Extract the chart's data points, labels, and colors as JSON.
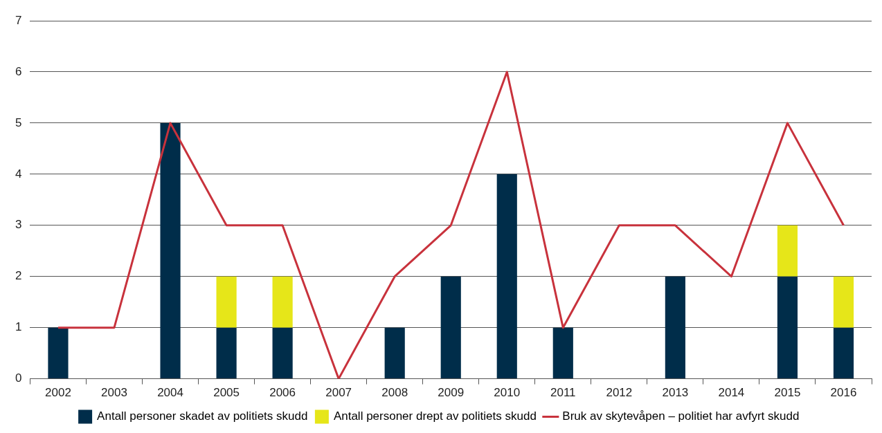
{
  "chart_data": {
    "type": "bar",
    "categories": [
      "2002",
      "2003",
      "2004",
      "2005",
      "2006",
      "2007",
      "2008",
      "2009",
      "2010",
      "2011",
      "2012",
      "2013",
      "2014",
      "2015",
      "2016"
    ],
    "stacked": true,
    "series": [
      {
        "name": "Antall personer skadet av politiets skudd",
        "color": "#002d4a",
        "values": [
          1,
          0,
          5,
          1,
          1,
          0,
          1,
          2,
          4,
          1,
          0,
          2,
          0,
          2,
          1
        ]
      },
      {
        "name": "Antall personer drept av politiets skudd",
        "color": "#e6e619",
        "values": [
          0,
          0,
          0,
          1,
          1,
          0,
          0,
          0,
          0,
          0,
          0,
          0,
          0,
          1,
          1
        ]
      },
      {
        "name": "Bruk av skytevåpen – politiet har avfyrt skudd",
        "type": "line",
        "color": "#c8323c",
        "values": [
          1,
          1,
          5,
          3,
          3,
          0,
          2,
          3,
          6,
          1,
          3,
          3,
          2,
          5,
          3
        ]
      }
    ],
    "ylim": [
      0,
      7
    ],
    "yticks": [
      0,
      1,
      2,
      3,
      4,
      5,
      6,
      7
    ],
    "grid": "y",
    "legend": "bottom",
    "marker": "none",
    "line_style": "solid"
  }
}
